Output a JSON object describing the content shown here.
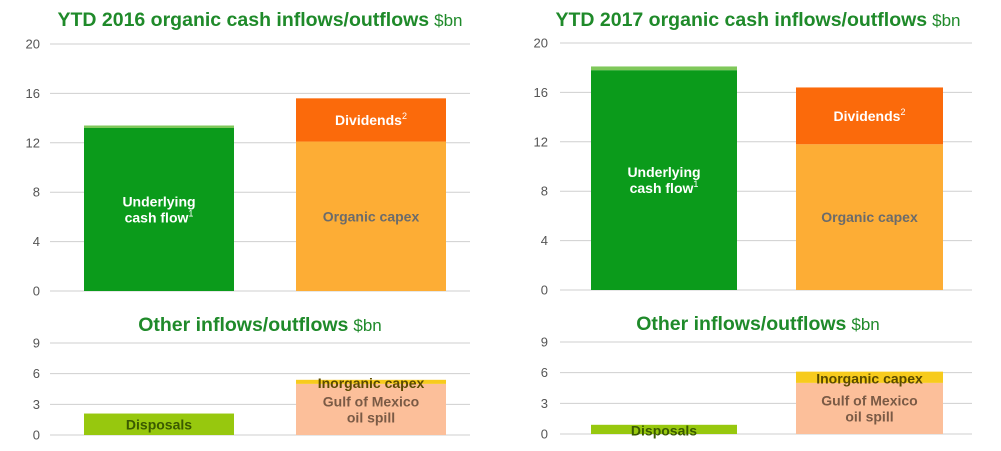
{
  "colors": {
    "underlying_cash_flow": "#0b9b1b",
    "cash_flow_top": "#7fc85a",
    "dividends": "#fb6a0b",
    "organic_capex": "#fdad35",
    "disposals": "#97c80e",
    "gulf_of_mexico": "#fcbf9a",
    "inorganic_capex": "#f7cb1d",
    "title": "#1f8a2a",
    "text_light": "#ffffff",
    "text_dark": "#555555",
    "text_mid": "#6b6b6b",
    "text_gulf": "#7a5a45",
    "text_inorganic": "#5a4a00",
    "text_disposals": "#3a5a00"
  },
  "chart_data": [
    {
      "id": "ytd2016-organic",
      "type": "bar",
      "stacked": true,
      "title": "YTD 2016 organic cash inflows/outflows",
      "unit": "$bn",
      "ylim": [
        0,
        20
      ],
      "yticks": [
        "0",
        "4",
        "8",
        "12",
        "16",
        "20"
      ],
      "grid": true,
      "bars": [
        {
          "segments": [
            {
              "key": "underlying_cash_flow",
              "value": 13.2,
              "color": "#0b9b1b",
              "label": "Underlying",
              "label2": "cash flow",
              "sup": "1",
              "text_color": "#ffffff"
            },
            {
              "key": "cash_flow_top",
              "value": 0.2,
              "color": "#7fc85a",
              "label": ""
            }
          ]
        },
        {
          "segments": [
            {
              "key": "organic_capex",
              "value": 12.1,
              "color": "#fdad35",
              "label": "Organic capex",
              "text_color": "#6b6b6b"
            },
            {
              "key": "dividends",
              "value": 3.5,
              "color": "#fb6a0b",
              "label": "Dividends",
              "sup": "2",
              "text_color": "#ffffff"
            }
          ]
        }
      ]
    },
    {
      "id": "ytd2017-organic",
      "type": "bar",
      "stacked": true,
      "title": "YTD 2017 organic cash inflows/outflows",
      "unit": "$bn",
      "ylim": [
        0,
        20
      ],
      "yticks": [
        "0",
        "4",
        "8",
        "12",
        "16",
        "20"
      ],
      "grid": true,
      "bars": [
        {
          "segments": [
            {
              "key": "underlying_cash_flow",
              "value": 17.8,
              "color": "#0b9b1b",
              "label": "Underlying",
              "label2": "cash flow",
              "sup": "1",
              "text_color": "#ffffff"
            },
            {
              "key": "cash_flow_top",
              "value": 0.3,
              "color": "#7fc85a",
              "label": ""
            }
          ]
        },
        {
          "segments": [
            {
              "key": "organic_capex",
              "value": 11.8,
              "color": "#fdad35",
              "label": "Organic capex",
              "text_color": "#6b6b6b"
            },
            {
              "key": "dividends",
              "value": 4.6,
              "color": "#fb6a0b",
              "label": "Dividends",
              "sup": "2",
              "text_color": "#ffffff"
            }
          ]
        }
      ]
    },
    {
      "id": "ytd2016-other",
      "type": "bar",
      "stacked": true,
      "title": "Other inflows/outflows",
      "unit": "$bn",
      "ylim": [
        0,
        9
      ],
      "yticks": [
        "0",
        "3",
        "6",
        "9"
      ],
      "grid": true,
      "bars": [
        {
          "segments": [
            {
              "key": "disposals",
              "value": 2.1,
              "color": "#97c80e",
              "label": "Disposals",
              "text_color": "#3a5a00"
            }
          ]
        },
        {
          "segments": [
            {
              "key": "gulf_of_mexico",
              "value": 5.0,
              "color": "#fcbf9a",
              "label": "Gulf of Mexico",
              "label2": "oil spill",
              "text_color": "#7a5a45"
            },
            {
              "key": "inorganic_capex",
              "value": 0.4,
              "color": "#f7cb1d",
              "label": "Inorganic capex",
              "text_color": "#5a4a00"
            }
          ]
        }
      ]
    },
    {
      "id": "ytd2017-other",
      "type": "bar",
      "stacked": true,
      "title": "Other inflows/outflows",
      "unit": "$bn",
      "ylim": [
        0,
        9
      ],
      "yticks": [
        "0",
        "3",
        "6",
        "9"
      ],
      "grid": true,
      "bars": [
        {
          "segments": [
            {
              "key": "disposals",
              "value": 0.9,
              "color": "#97c80e",
              "label": "Disposals",
              "text_color": "#3a5a00"
            }
          ]
        },
        {
          "segments": [
            {
              "key": "gulf_of_mexico",
              "value": 5.0,
              "color": "#fcbf9a",
              "label": "Gulf of Mexico",
              "label2": "oil spill",
              "text_color": "#7a5a45"
            },
            {
              "key": "inorganic_capex",
              "value": 1.1,
              "color": "#f7cb1d",
              "label": "Inorganic capex",
              "text_color": "#5a4a00"
            }
          ]
        }
      ]
    }
  ]
}
